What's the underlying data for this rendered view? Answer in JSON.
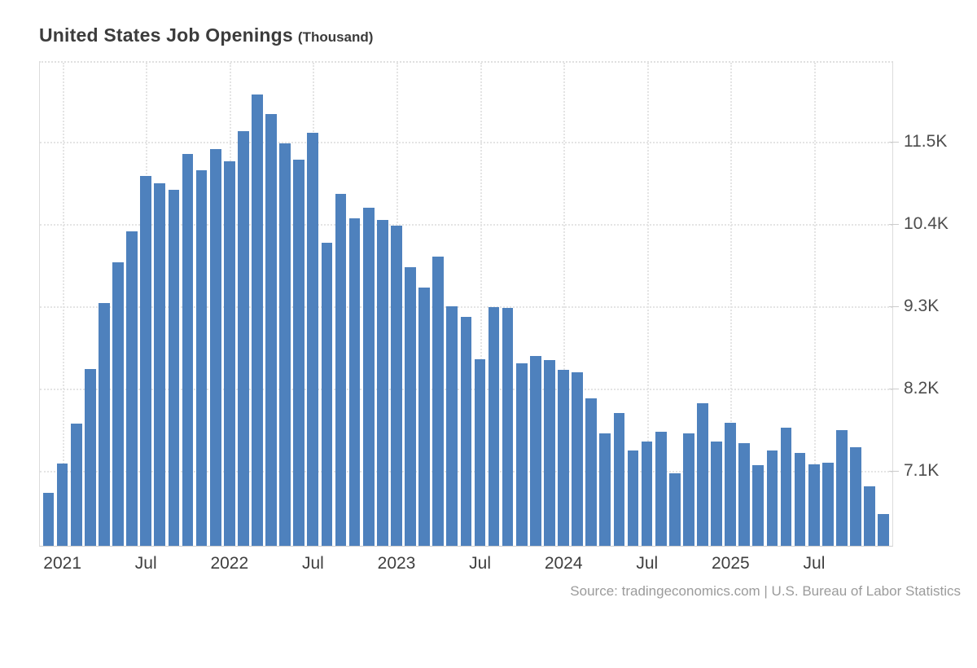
{
  "title": {
    "main": "United States Job Openings",
    "unit": "(Thousand)"
  },
  "source": "Source: tradingeconomics.com | U.S. Bureau of Labor Statistics",
  "colors": {
    "bar": "#4E81BD",
    "grid": "#E4E4E4",
    "axis_border": "#CFCFCF",
    "x_label": "#3F3F3F",
    "y_label": "#4D4D4D",
    "title": "#3C3C3C",
    "source": "#9B9B9B",
    "background": "#FFFFFF"
  },
  "chart_data": {
    "type": "bar",
    "title": "United States Job Openings (Thousand)",
    "xlabel": "",
    "ylabel": "Thousand",
    "grid": true,
    "legend": false,
    "ylim": [
      6.1,
      12.56
    ],
    "y_ticks": [
      {
        "value": 7.1,
        "label": "7.1K"
      },
      {
        "value": 8.2,
        "label": "8.2K"
      },
      {
        "value": 9.3,
        "label": "9.3K"
      },
      {
        "value": 10.4,
        "label": "10.4K"
      },
      {
        "value": 11.5,
        "label": "11.5K"
      }
    ],
    "x_ticks": [
      {
        "index": 1,
        "label": "2021"
      },
      {
        "index": 7,
        "label": "Jul"
      },
      {
        "index": 13,
        "label": "2022"
      },
      {
        "index": 19,
        "label": "Jul"
      },
      {
        "index": 25,
        "label": "2023"
      },
      {
        "index": 31,
        "label": "Jul"
      },
      {
        "index": 37,
        "label": "2024"
      },
      {
        "index": 43,
        "label": "Jul"
      },
      {
        "index": 49,
        "label": "2025"
      },
      {
        "index": 55,
        "label": "Jul"
      }
    ],
    "categories": [
      "Dec 2020",
      "Jan 2021",
      "Feb 2021",
      "Mar 2021",
      "Apr 2021",
      "May 2021",
      "Jun 2021",
      "Jul 2021",
      "Aug 2021",
      "Sep 2021",
      "Oct 2021",
      "Nov 2021",
      "Dec 2021",
      "Jan 2022",
      "Feb 2022",
      "Mar 2022",
      "Apr 2022",
      "May 2022",
      "Jun 2022",
      "Jul 2022",
      "Aug 2022",
      "Sep 2022",
      "Oct 2022",
      "Nov 2022",
      "Dec 2022",
      "Jan 2023",
      "Feb 2023",
      "Mar 2023",
      "Apr 2023",
      "May 2023",
      "Jun 2023",
      "Jul 2023",
      "Aug 2023",
      "Sep 2023",
      "Oct 2023",
      "Nov 2023",
      "Dec 2023",
      "Jan 2024",
      "Feb 2024",
      "Mar 2024",
      "Apr 2024",
      "May 2024",
      "Jun 2024",
      "Jul 2024",
      "Aug 2024",
      "Sep 2024",
      "Oct 2024",
      "Nov 2024",
      "Dec 2024",
      "Jan 2025",
      "Feb 2025",
      "Mar 2025",
      "Apr 2025",
      "May 2025",
      "Jun 2025",
      "Jul 2025",
      "Aug 2025",
      "Sep 2025",
      "Oct 2025",
      "Nov 2025",
      "Dec 2025"
    ],
    "values": [
      6.81,
      7.2,
      7.73,
      8.46,
      9.35,
      9.89,
      10.31,
      11.05,
      10.95,
      10.86,
      11.34,
      11.12,
      11.41,
      11.24,
      11.65,
      12.13,
      11.87,
      11.48,
      11.26,
      11.62,
      10.15,
      10.81,
      10.48,
      10.62,
      10.46,
      10.38,
      9.83,
      9.55,
      9.97,
      9.3,
      9.16,
      8.6,
      9.29,
      9.28,
      8.54,
      8.64,
      8.58,
      8.45,
      8.42,
      8.07,
      7.6,
      7.88,
      7.38,
      7.5,
      7.63,
      7.07,
      7.6,
      8.01,
      7.49,
      7.75,
      7.47,
      7.18,
      7.38,
      7.68,
      7.34,
      7.19,
      7.21,
      7.65,
      7.42,
      6.9,
      6.52
    ]
  }
}
